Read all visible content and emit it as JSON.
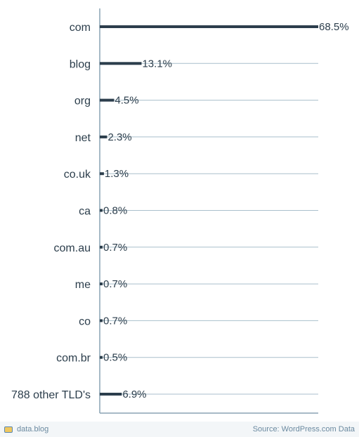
{
  "chart_data": {
    "type": "bar",
    "orientation": "horizontal",
    "categories": [
      "com",
      "blog",
      "org",
      "net",
      "co.uk",
      "ca",
      "com.au",
      "me",
      "co",
      "com.br",
      "788 other TLD's"
    ],
    "values": [
      68.5,
      13.1,
      4.5,
      2.3,
      1.3,
      0.8,
      0.7,
      0.7,
      0.7,
      0.5,
      6.9
    ],
    "value_labels": [
      "68.5%",
      "13.1%",
      "4.5%",
      "2.3%",
      "1.3%",
      "0.8%",
      "0.7%",
      "0.7%",
      "0.7%",
      "0.5%",
      "6.9%"
    ],
    "xlim": [
      0,
      68.5
    ],
    "grid": true,
    "colors": {
      "bar": "#2c3e4c",
      "grid": "#a9bfcc",
      "axis": "#8aa3b4"
    }
  },
  "footer": {
    "logo_icon": "data-blog-logo-icon",
    "left_text": "data.blog",
    "right_text": "Source: WordPress.com Data"
  }
}
